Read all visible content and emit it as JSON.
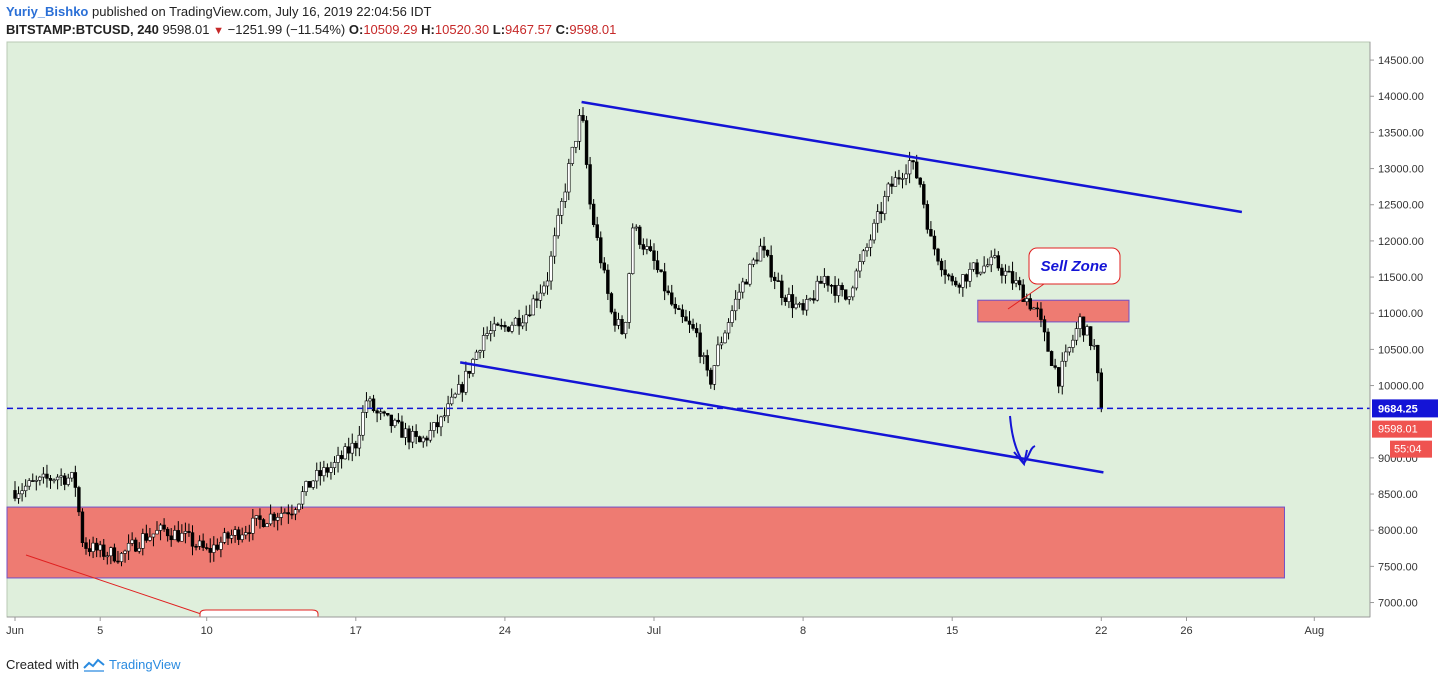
{
  "header": {
    "author": "Yuriy_Bishko",
    "published": "published on TradingView.com, July 16, 2019 22:04:56 IDT",
    "symbol": "BITSTAMP:BTCUSD, 240",
    "last": "9598.01",
    "change": "−1251.99 (−11.54%)",
    "o_label": "O:",
    "o_value": "10509.29",
    "h_label": "H:",
    "h_value": "10520.30",
    "l_label": "L:",
    "l_value": "9467.57",
    "c_label": "C:",
    "c_value": "9598.01"
  },
  "footer": {
    "created": "Created with",
    "brand": "TradingView"
  },
  "colors": {
    "background": "#dfefdc",
    "line": "#1414d6",
    "zone": "#ee7b72",
    "zoneBorder": "#7050c8",
    "bull": "#ffffff",
    "bear": "#000000"
  },
  "chart_data": {
    "type": "candlestick",
    "ylim": [
      6800,
      14750
    ],
    "yticks": [
      "14500.00",
      "14000.00",
      "13500.00",
      "13000.00",
      "12500.00",
      "12000.00",
      "11500.00",
      "11000.00",
      "10500.00",
      "10000.00",
      "9000.00",
      "8500.00",
      "8000.00",
      "7500.00",
      "7000.00"
    ],
    "xticks": [
      {
        "label": "Jun",
        "day": 0
      },
      {
        "label": "5",
        "day": 4
      },
      {
        "label": "10",
        "day": 9
      },
      {
        "label": "17",
        "day": 16
      },
      {
        "label": "24",
        "day": 23
      },
      {
        "label": "Jul",
        "day": 30
      },
      {
        "label": "8",
        "day": 37
      },
      {
        "label": "15",
        "day": 44
      },
      {
        "label": "22",
        "day": 51
      },
      {
        "label": "26",
        "day": 55
      },
      {
        "label": "Aug",
        "day": 61
      }
    ],
    "price_path": [
      [
        0,
        8550
      ],
      [
        1,
        8650
      ],
      [
        2,
        8750
      ],
      [
        2.8,
        8700
      ],
      [
        3.2,
        7800
      ],
      [
        4,
        7700
      ],
      [
        5,
        7650
      ],
      [
        6,
        7900
      ],
      [
        7,
        8000
      ],
      [
        8,
        7900
      ],
      [
        9,
        7700
      ],
      [
        10,
        7900
      ],
      [
        11,
        8050
      ],
      [
        12,
        8200
      ],
      [
        13,
        8300
      ],
      [
        14,
        8700
      ],
      [
        15,
        8900
      ],
      [
        16,
        9200
      ],
      [
        16.5,
        9800
      ],
      [
        17,
        9600
      ],
      [
        18,
        9400
      ],
      [
        19,
        9200
      ],
      [
        20,
        9500
      ],
      [
        21,
        10000
      ],
      [
        22,
        10700
      ],
      [
        23,
        10800
      ],
      [
        24,
        11000
      ],
      [
        25,
        11500
      ],
      [
        26,
        13000
      ],
      [
        26.6,
        13800
      ],
      [
        27,
        12500
      ],
      [
        28,
        11000
      ],
      [
        28.6,
        10700
      ],
      [
        29,
        12200
      ],
      [
        30,
        11700
      ],
      [
        31,
        11000
      ],
      [
        32,
        10700
      ],
      [
        32.6,
        10000
      ],
      [
        33,
        10500
      ],
      [
        34,
        11300
      ],
      [
        35,
        11900
      ],
      [
        36,
        11300
      ],
      [
        37,
        11000
      ],
      [
        38,
        11500
      ],
      [
        39,
        11200
      ],
      [
        40,
        11900
      ],
      [
        41,
        12700
      ],
      [
        42,
        13100
      ],
      [
        42.5,
        12800
      ],
      [
        43,
        12000
      ],
      [
        44,
        11400
      ],
      [
        45,
        11600
      ],
      [
        46,
        11700
      ],
      [
        47,
        11400
      ],
      [
        48,
        11000
      ],
      [
        48.5,
        10500
      ],
      [
        49,
        10100
      ],
      [
        50,
        10900
      ],
      [
        50.7,
        10500
      ],
      [
        51,
        9598
      ]
    ],
    "channel_upper": {
      "from": [
        26.6,
        13920
      ],
      "to": [
        57.6,
        12400
      ]
    },
    "channel_lower": {
      "from": [
        20.9,
        10320
      ],
      "to": [
        51.1,
        8800
      ]
    },
    "level": {
      "value": 9684.25,
      "label": "9684.25"
    },
    "last_price": {
      "value": 9598.01,
      "label": "9598.01",
      "countdown": "55:04"
    },
    "zones": [
      {
        "from": 45.2,
        "to": 52.3,
        "low": 10880,
        "high": 11180
      },
      {
        "from": -0.5,
        "to": 59.6,
        "low": 7340,
        "high": 8320
      }
    ],
    "annotation": {
      "text": "Sell Zone"
    }
  }
}
